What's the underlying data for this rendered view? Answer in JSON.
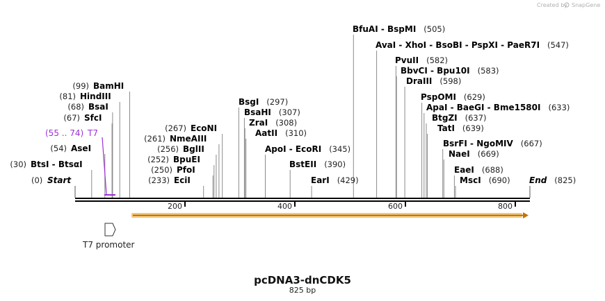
{
  "watermark": "Created by",
  "watermark_brand": "SnapGene",
  "plasmid": {
    "name": "pcDNA3-dnCDK5",
    "length_label": "825 bp"
  },
  "ruler": {
    "ticks": [
      "200",
      "400",
      "600",
      "800"
    ]
  },
  "feature_label": {
    "range": "(55 .. 74)",
    "name": "T7"
  },
  "promoter_label": "T7 promoter",
  "sites": [
    {
      "pos": "(0)",
      "names": [
        "Start"
      ]
    },
    {
      "pos": "(30)",
      "names": [
        "BtsI",
        "BtsαI"
      ]
    },
    {
      "pos": "(54)",
      "names": [
        "AseI"
      ]
    },
    {
      "pos": "(67)",
      "names": [
        "SfcI"
      ]
    },
    {
      "pos": "(68)",
      "names": [
        "BsaI"
      ]
    },
    {
      "pos": "(81)",
      "names": [
        "HindIII"
      ]
    },
    {
      "pos": "(99)",
      "names": [
        "BamHI"
      ]
    },
    {
      "pos": "(233)",
      "names": [
        "EciI"
      ]
    },
    {
      "pos": "(250)",
      "names": [
        "PfoI"
      ]
    },
    {
      "pos": "(252)",
      "names": [
        "BpuEI"
      ]
    },
    {
      "pos": "(256)",
      "names": [
        "BglII"
      ]
    },
    {
      "pos": "(261)",
      "names": [
        "NmeAIII"
      ]
    },
    {
      "pos": "(267)",
      "names": [
        "EcoNI"
      ]
    },
    {
      "pos": "(297)",
      "names": [
        "BsgI"
      ]
    },
    {
      "pos": "(307)",
      "names": [
        "BsaHI"
      ]
    },
    {
      "pos": "(308)",
      "names": [
        "ZraI"
      ]
    },
    {
      "pos": "(310)",
      "names": [
        "AatII"
      ]
    },
    {
      "pos": "(345)",
      "names": [
        "ApoI",
        "EcoRI"
      ]
    },
    {
      "pos": "(390)",
      "names": [
        "BstEII"
      ]
    },
    {
      "pos": "(429)",
      "names": [
        "EarI"
      ]
    },
    {
      "pos": "(505)",
      "names": [
        "BfuAI",
        "BspMI"
      ]
    },
    {
      "pos": "(547)",
      "names": [
        "AvaI",
        "XhoI",
        "BsoBI",
        "PspXI",
        "PaeR7I"
      ]
    },
    {
      "pos": "(582)",
      "names": [
        "PvuII"
      ]
    },
    {
      "pos": "(583)",
      "names": [
        "BbvCI",
        "Bpu10I"
      ]
    },
    {
      "pos": "(598)",
      "names": [
        "DraIII"
      ]
    },
    {
      "pos": "(629)",
      "names": [
        "PspOMI"
      ]
    },
    {
      "pos": "(633)",
      "names": [
        "ApaI",
        "BaeGI",
        "Bme1580I"
      ]
    },
    {
      "pos": "(637)",
      "names": [
        "BtgZI"
      ]
    },
    {
      "pos": "(639)",
      "names": [
        "TatI"
      ]
    },
    {
      "pos": "(667)",
      "names": [
        "BsrFI",
        "NgoMIV"
      ]
    },
    {
      "pos": "(669)",
      "names": [
        "NaeI"
      ]
    },
    {
      "pos": "(688)",
      "names": [
        "EaeI"
      ]
    },
    {
      "pos": "(690)",
      "names": [
        "MscI"
      ]
    },
    {
      "pos": "(825)",
      "names": [
        "End"
      ]
    }
  ]
}
